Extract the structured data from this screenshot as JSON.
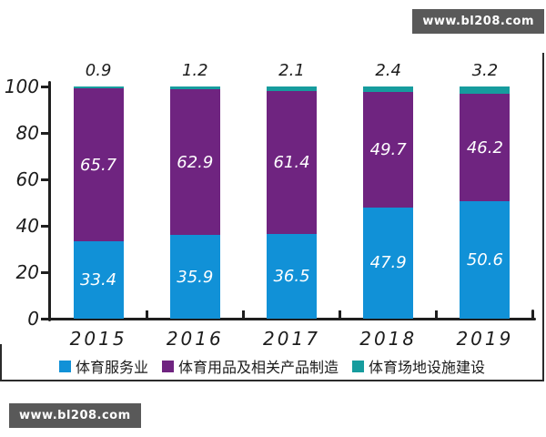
{
  "watermark": {
    "text": "www.bl208.com",
    "bg": "#595959",
    "fg": "#ffffff"
  },
  "chart_data": {
    "type": "bar",
    "stacked": true,
    "categories": [
      "2015",
      "2016",
      "2017",
      "2018",
      "2019"
    ],
    "series": [
      {
        "name": "体育服务业",
        "color": "#1191D7",
        "values": [
          33.4,
          35.9,
          36.5,
          47.9,
          50.6
        ]
      },
      {
        "name": "体育用品及相关产品制造",
        "color": "#6F2480",
        "values": [
          65.7,
          62.9,
          61.4,
          49.7,
          46.2
        ]
      },
      {
        "name": "体育场地设施建设",
        "color": "#169C9E",
        "values": [
          0.9,
          1.2,
          2.1,
          2.4,
          3.2
        ]
      }
    ],
    "ylim": [
      0,
      100
    ],
    "yticks": [
      0,
      20,
      40,
      60,
      80,
      100
    ],
    "grid": false,
    "legend_position": "bottom",
    "value_label_placement": {
      "inside_series": [
        0,
        1
      ],
      "above_series": [
        2
      ]
    },
    "label_colors": {
      "inside": "#ffffff",
      "above": "#1c1c1c",
      "axis": "#1c1c1c"
    }
  }
}
